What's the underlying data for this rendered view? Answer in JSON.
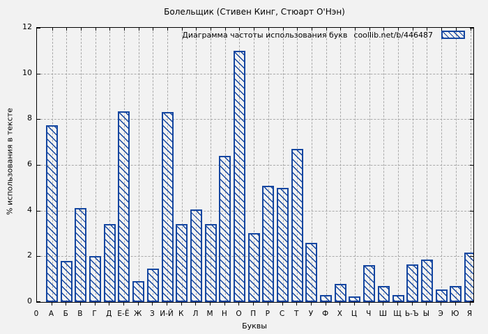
{
  "title": "Болельщик (Стивен Кинг, Стюарт О'Нэн)",
  "legend": {
    "label": "Диаграмма частоты использования букв",
    "url": "coollib.net/b/446487"
  },
  "axes": {
    "x_label": "Буквы",
    "y_label": "% использования в тексте",
    "y_ticks": [
      0,
      2,
      4,
      6,
      8,
      10,
      12
    ],
    "origin_label": "0"
  },
  "colors": {
    "bar": "#1446a0",
    "grid": "#a9a9a9",
    "background": "#f2f2f2",
    "border": "#000000"
  },
  "chart_data": {
    "type": "bar",
    "title": "Болельщик (Стивен Кинг, Стюарт О'Нэн)",
    "xlabel": "Буквы",
    "ylabel": "% использования в тексте",
    "ylim": [
      0,
      12
    ],
    "grid": true,
    "legend_position": "top-right",
    "categories": [
      "А",
      "Б",
      "В",
      "Г",
      "Д",
      "Е-Ё",
      "Ж",
      "З",
      "И-Й",
      "К",
      "Л",
      "М",
      "Н",
      "О",
      "П",
      "Р",
      "С",
      "Т",
      "У",
      "Ф",
      "Х",
      "Ц",
      "Ч",
      "Ш",
      "Щ",
      "Ь-Ъ",
      "Ы",
      "Э",
      "Ю",
      "Я"
    ],
    "values": [
      7.75,
      1.8,
      4.1,
      2.0,
      3.4,
      8.35,
      0.9,
      1.45,
      8.3,
      3.4,
      4.05,
      3.4,
      6.4,
      11.0,
      3.0,
      5.1,
      5.0,
      6.7,
      2.6,
      0.3,
      0.8,
      0.25,
      1.6,
      0.7,
      0.3,
      1.65,
      1.85,
      0.55,
      0.7,
      2.15
    ]
  }
}
